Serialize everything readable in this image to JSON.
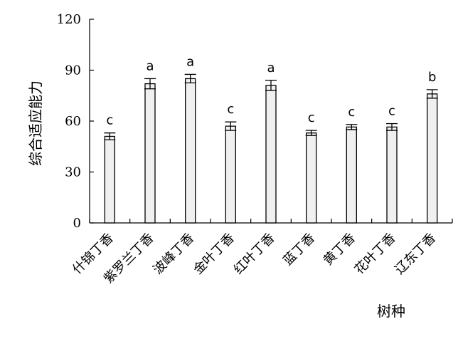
{
  "chart_data": {
    "type": "bar",
    "title": "",
    "xlabel": "树种",
    "ylabel": "综合适应能力",
    "ylim": [
      0,
      120
    ],
    "yticks": [
      0,
      30,
      60,
      90,
      120
    ],
    "grid": false,
    "legend": "none",
    "categories": [
      "什锦丁香",
      "紫罗兰丁香",
      "波峰丁香",
      "金叶丁香",
      "红叶丁香",
      "蓝丁香",
      "黄丁香",
      "花叶丁香",
      "辽东丁香"
    ],
    "values": [
      51,
      82,
      85,
      57,
      81,
      53,
      56.5,
      56.5,
      76
    ],
    "errors": [
      2,
      3,
      2.5,
      2.5,
      3,
      1.5,
      1.5,
      2,
      2.5
    ],
    "significance_labels": [
      "c",
      "a",
      "a",
      "c",
      "a",
      "c",
      "c",
      "c",
      "b"
    ],
    "colors": {
      "bar_fill": "#f0f0f0",
      "bar_stroke": "#000000",
      "axis": "#000000",
      "text": "#000000"
    }
  }
}
